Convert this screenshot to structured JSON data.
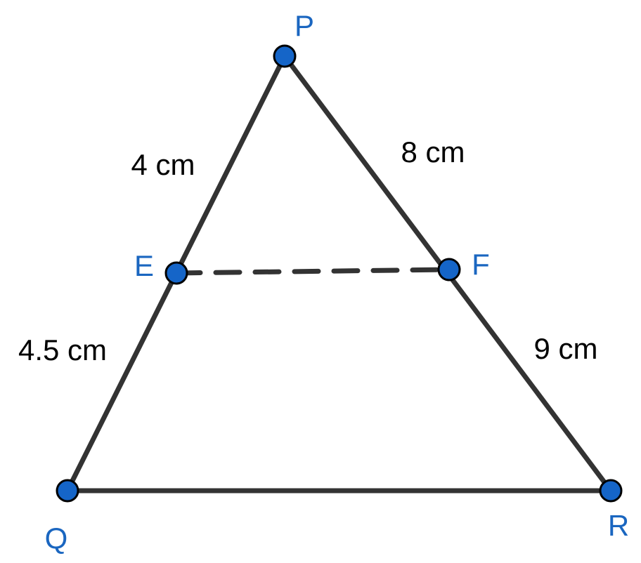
{
  "nodes": [
    {
      "label": "P"
    },
    {
      "label": "Q"
    },
    {
      "label": "R"
    },
    {
      "label": "E"
    },
    {
      "label": "F"
    }
  ],
  "edges": [
    {
      "label": "4 cm"
    },
    {
      "label": "8 cm"
    },
    {
      "label": "4.5 cm"
    },
    {
      "label": "9 cm"
    }
  ]
}
